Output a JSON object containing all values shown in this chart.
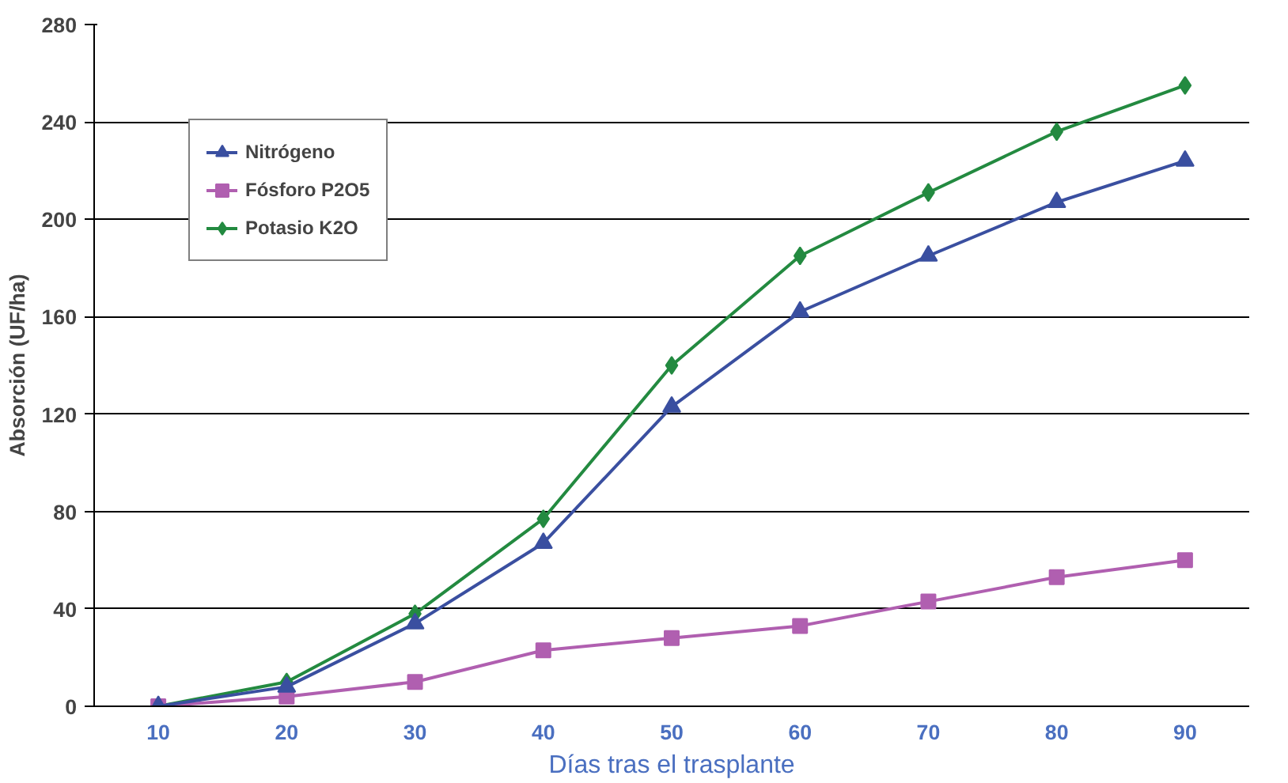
{
  "chart_data": {
    "type": "line",
    "xlabel": "Días tras el trasplante",
    "ylabel": "Absorción (UF/ha)",
    "categories": [
      "10",
      "20",
      "30",
      "40",
      "50",
      "60",
      "70",
      "80",
      "90"
    ],
    "series": [
      {
        "name": "Nitrógeno",
        "color": "#3a4fa0",
        "marker": "triangle",
        "values": [
          0,
          8,
          34,
          67,
          123,
          162,
          185,
          207,
          224
        ]
      },
      {
        "name": "Fósforo P2O5",
        "color": "#b05fb0",
        "marker": "square",
        "values": [
          0,
          4,
          10,
          23,
          28,
          33,
          43,
          53,
          60
        ]
      },
      {
        "name": "Potasio K2O",
        "color": "#238a40",
        "marker": "diamond",
        "values": [
          0,
          10,
          38,
          77,
          140,
          185,
          211,
          236,
          255
        ]
      }
    ],
    "ylim": [
      0,
      280
    ],
    "yticks": [
      0,
      40,
      80,
      120,
      160,
      200,
      240,
      280
    ],
    "grid": "y",
    "legend": "top left",
    "line_style": "solid"
  }
}
